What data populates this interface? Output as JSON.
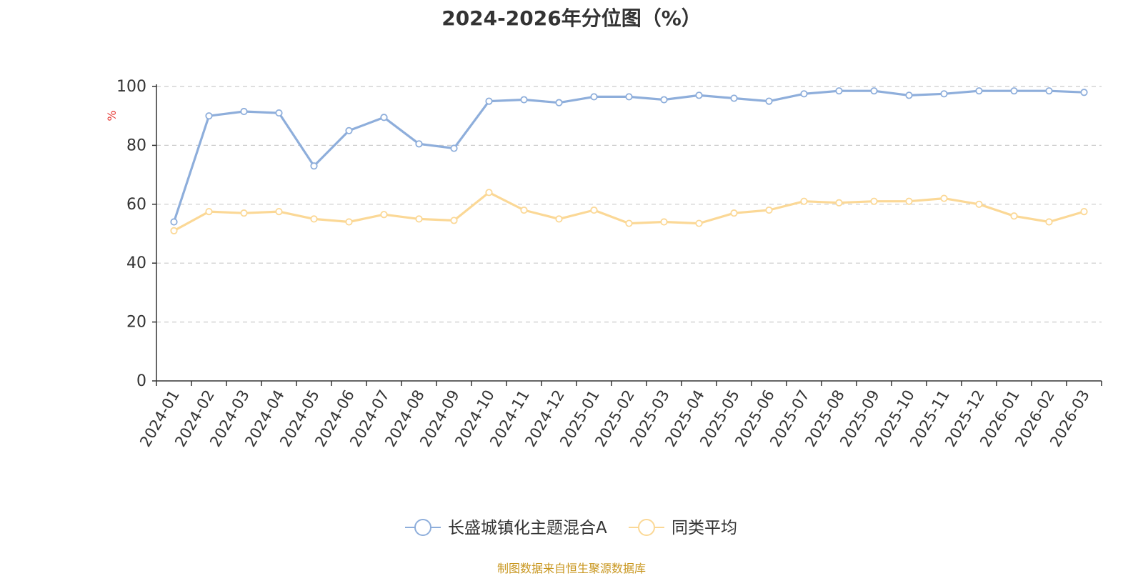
{
  "footer": {
    "source": "制图数据来自恒生聚源数据库"
  },
  "chart_data": {
    "type": "line",
    "title": "2024-2026年分位图（%）",
    "ylabel": "%",
    "xlabel": "",
    "ylim": [
      0,
      100
    ],
    "y_ticks": [
      0,
      20,
      40,
      60,
      80,
      100
    ],
    "grid": true,
    "legend_position": "bottom",
    "categories": [
      "2024-01",
      "2024-02",
      "2024-03",
      "2024-04",
      "2024-05",
      "2024-06",
      "2024-07",
      "2024-08",
      "2024-09",
      "2024-10",
      "2024-11",
      "2024-12",
      "2025-01",
      "2025-02",
      "2025-03",
      "2025-04",
      "2025-05",
      "2025-06",
      "2025-07",
      "2025-08",
      "2025-09",
      "2025-10",
      "2025-11",
      "2025-12",
      "2026-01",
      "2026-02",
      "2026-03"
    ],
    "series": [
      {
        "name": "长盛城镇化主题混合A",
        "color": "#8eaedb",
        "values": [
          54,
          90,
          91.5,
          91,
          73,
          85,
          89.5,
          80.5,
          79,
          95,
          95.5,
          94.5,
          96.5,
          96.5,
          95.5,
          97,
          96,
          95,
          97.5,
          98.5,
          98.5,
          97,
          97.5,
          98.5,
          98.5,
          98.5,
          98
        ]
      },
      {
        "name": "同类平均",
        "color": "#fbd896",
        "values": [
          51,
          57.5,
          57,
          57.5,
          55,
          54,
          56.5,
          55,
          54.5,
          64,
          58,
          55,
          58,
          53.5,
          54,
          53.5,
          57,
          58,
          61,
          60.5,
          61,
          61,
          62,
          60,
          56,
          54,
          57.5
        ]
      }
    ]
  }
}
